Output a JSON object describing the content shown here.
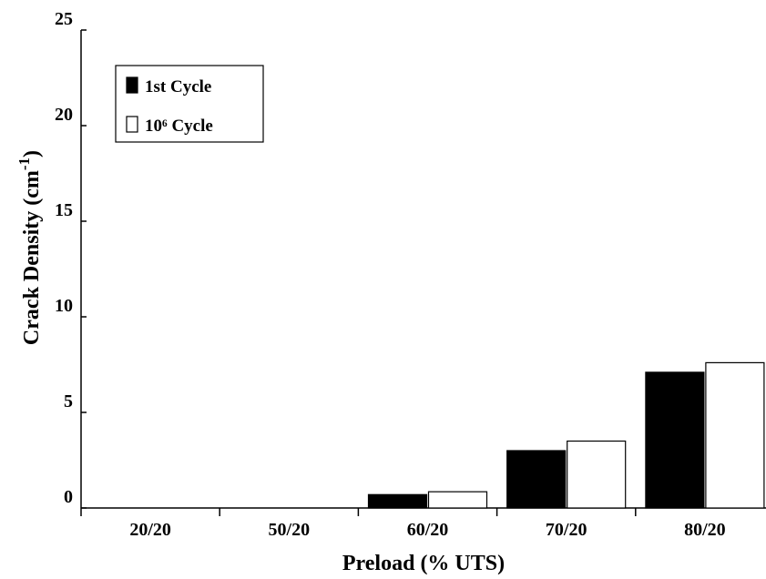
{
  "chart_data": {
    "type": "bar",
    "title": "",
    "xlabel": "Preload (% UTS)",
    "ylabel": "Crack Density (cm",
    "ylabel_sup": "-1",
    "ylabel_close": ")",
    "categories": [
      "20/20",
      "50/20",
      "60/20",
      "70/20",
      "80/20"
    ],
    "series": [
      {
        "name": "1st Cycle",
        "color": "#000000",
        "values": [
          0,
          0,
          0.7,
          3.0,
          7.1
        ]
      },
      {
        "name": "10⁶ Cycle",
        "color": "#ffffff",
        "values": [
          0,
          0,
          0.85,
          3.5,
          7.6
        ]
      }
    ],
    "ylim": [
      0,
      25
    ],
    "yticks": [
      0,
      5,
      10,
      15,
      20,
      25
    ],
    "grid": false,
    "legend": {
      "position": "top-left"
    }
  }
}
